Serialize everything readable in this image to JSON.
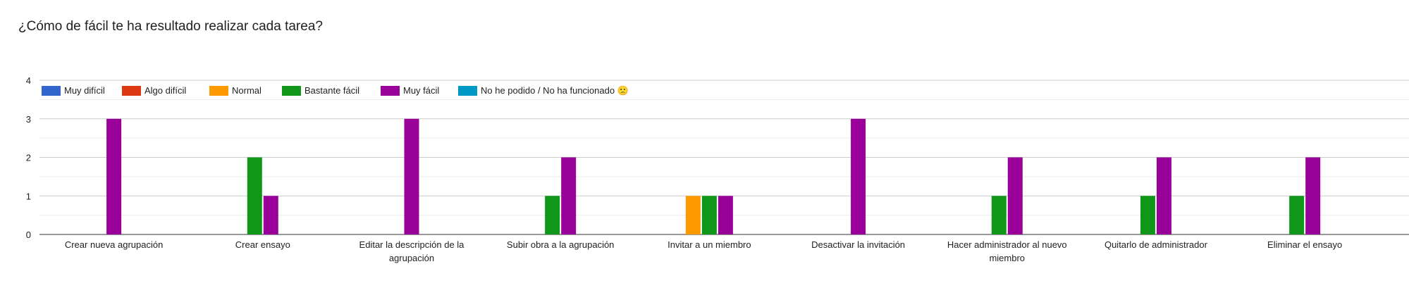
{
  "question": "¿Cómo de fácil te ha resultado realizar cada tarea?",
  "chart_data": {
    "type": "bar",
    "title": "¿Cómo de fácil te ha resultado realizar cada tarea?",
    "categories": [
      [
        "Crear nueva agrupación"
      ],
      [
        "Crear ensayo"
      ],
      [
        "Editar la descripción de la",
        "agrupación"
      ],
      [
        "Subir obra a la agrupación"
      ],
      [
        "Invitar a un miembro"
      ],
      [
        "Desactivar la invitación"
      ],
      [
        "Hacer administrador al nuevo",
        "miembro"
      ],
      [
        "Quitarlo de administrador"
      ],
      [
        "Eliminar el ensayo"
      ]
    ],
    "series": [
      {
        "name": "Muy difícil",
        "color": "#3366cc",
        "values": [
          0,
          0,
          0,
          0,
          0,
          0,
          0,
          0,
          0
        ]
      },
      {
        "name": "Algo difícil",
        "color": "#dc3912",
        "values": [
          0,
          0,
          0,
          0,
          0,
          0,
          0,
          0,
          0
        ]
      },
      {
        "name": "Normal",
        "color": "#ff9900",
        "values": [
          0,
          0,
          0,
          0,
          1,
          0,
          0,
          0,
          0
        ]
      },
      {
        "name": "Bastante fácil",
        "color": "#109618",
        "values": [
          0,
          2,
          0,
          1,
          1,
          0,
          1,
          1,
          1
        ]
      },
      {
        "name": "Muy fácil",
        "color": "#990099",
        "values": [
          3,
          1,
          3,
          2,
          1,
          3,
          2,
          2,
          2
        ]
      },
      {
        "name": "No he podido / No ha funcionado 🙁",
        "color": "#0099c6",
        "values": [
          0,
          0,
          0,
          0,
          0,
          0,
          0,
          0,
          0
        ]
      }
    ],
    "yticks": [
      0,
      1,
      2,
      3,
      4
    ],
    "ylim": [
      0,
      4
    ],
    "grid": true,
    "legend": "top-left"
  }
}
